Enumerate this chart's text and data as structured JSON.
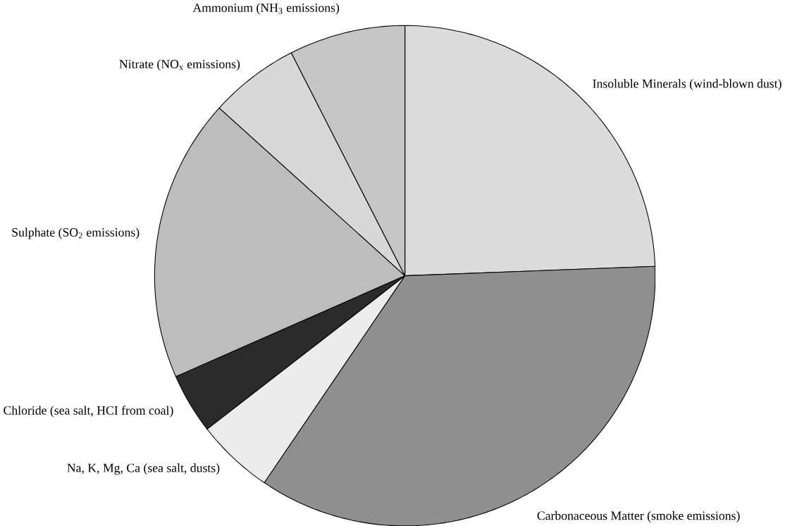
{
  "chart_data": {
    "type": "pie",
    "categories": [
      "Insoluble Minerals (wind-blown dust)",
      "Carbonaceous Matter (smoke emissions)",
      "Na, K, Mg, Ca (sea salt, dusts)",
      "Chloride (sea salt, HCI from coal)",
      "Sulphate (SO$_{2}$ emissions)",
      "Nitrate (NO$_{x}$ emissions)",
      "Ammonium (NH$_{3}$ emissions)"
    ],
    "values": [
      24.4,
      35.1,
      5.0,
      3.9,
      18.3,
      5.8,
      7.5
    ],
    "colors": [
      "#dcdcdc",
      "#8f8f8f",
      "#ececec",
      "#2b2b2b",
      "#bdbdbd",
      "#d8d8d8",
      "#c6c6c6"
    ]
  }
}
